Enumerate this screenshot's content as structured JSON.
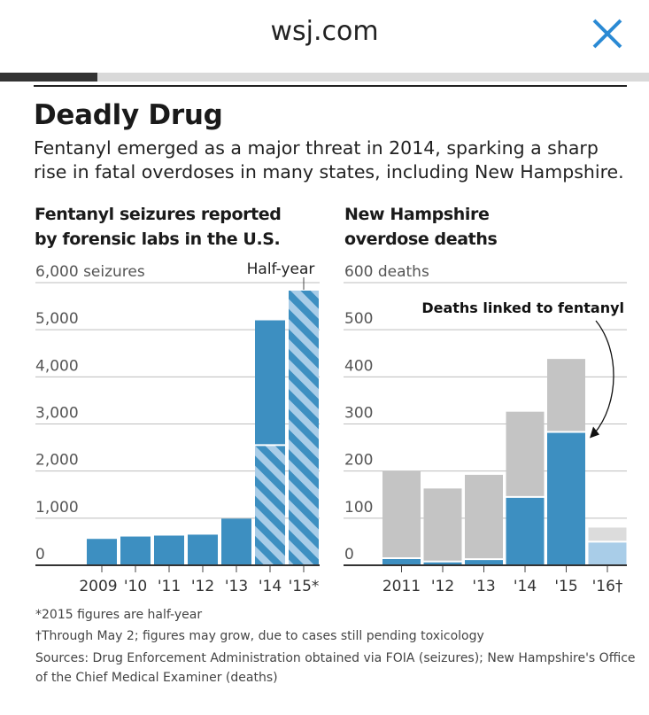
{
  "browser": {
    "domain": "wsj.com",
    "close_icon": "close-icon",
    "accent": "#2a8ad4",
    "progress": 0.15
  },
  "article": {
    "title": "Deadly Drug",
    "subtitle": "Fentanyl emerged as a major threat in 2014, sparking a sharp rise in fatal overdoses in many states, including New Hampshire."
  },
  "notes": {
    "n1": "*2015 figures are half-year",
    "n2": "†Through May 2; figures may grow, due to cases still pending toxicology",
    "sources": "Sources: Drug Enforcement Administration obtained via FOIA (seizures); New Hampshire's Office of the Chief Medical Examiner (deaths)"
  },
  "colors": {
    "blue": "#3d8fc1",
    "light_blue": "#a9cde8",
    "gray": "#c4c4c4",
    "light_gray": "#dcdcdc"
  },
  "chart_data": [
    {
      "type": "bar",
      "title_lines": [
        "Fentanyl seizures reported",
        "by forensic labs in the U.S."
      ],
      "ylabel": "6,000 seizures",
      "ylim": [
        0,
        6000
      ],
      "yticks": [
        0,
        1000,
        2000,
        3000,
        4000,
        5000,
        6000
      ],
      "ytick_labels": [
        "0",
        "1,000",
        "2,000",
        "3,000",
        "4,000",
        "5,000",
        "6,000 seizures"
      ],
      "categories": [
        "2009",
        "'10",
        "'11",
        "'12",
        "'13",
        "'14",
        "'15*"
      ],
      "values": [
        560,
        610,
        630,
        650,
        990,
        5200,
        5850
      ],
      "hatched_portion": [
        0,
        0,
        0,
        0,
        0,
        2550,
        5850
      ],
      "annotation": "Half-year",
      "grid": true
    },
    {
      "type": "bar",
      "title_lines": [
        "New Hampshire",
        "overdose deaths"
      ],
      "ylabel": "600 deaths",
      "ylim": [
        0,
        600
      ],
      "yticks": [
        0,
        100,
        200,
        300,
        400,
        500,
        600
      ],
      "ytick_labels": [
        "0",
        "100",
        "200",
        "300",
        "400",
        "500",
        "600 deaths"
      ],
      "categories": [
        "2011",
        "'12",
        "'13",
        "'14",
        "'15",
        "'16†"
      ],
      "series": [
        {
          "name": "Deaths linked to fentanyl",
          "values": [
            15,
            8,
            13,
            145,
            283,
            50
          ]
        },
        {
          "values": [
            200,
            163,
            192,
            326,
            438,
            80
          ]
        }
      ],
      "annotation": "Deaths linked to fentanyl",
      "grid": true
    }
  ]
}
